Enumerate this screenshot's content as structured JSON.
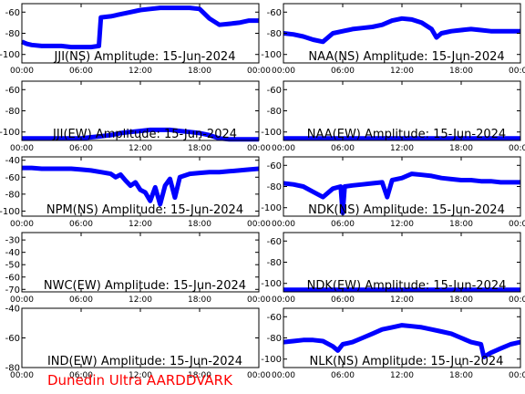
{
  "footer": "Dunedin Ultra AARDDVARK",
  "colors": {
    "trace": "#0000ff",
    "axis": "#000000",
    "footer": "#ff0000"
  },
  "chart_data": [
    {
      "type": "line",
      "title": "JJI(NS) Amplitude: 15-Jun-2024",
      "yticks": [
        -60,
        -80,
        -100
      ],
      "ylim": [
        -108,
        -52
      ],
      "x_ticks": [
        "00:00",
        "06:00",
        "12:00",
        "18:00",
        "00:00"
      ],
      "series": [
        {
          "x": [
            0,
            0.5,
            1,
            2,
            3,
            4,
            5,
            6,
            7,
            7.8,
            8,
            9,
            10,
            11,
            12,
            13,
            14,
            15,
            16,
            17,
            18,
            19,
            20,
            21,
            22,
            23,
            24
          ],
          "y": [
            -88,
            -90,
            -91,
            -92,
            -92,
            -92,
            -93,
            -93,
            -93,
            -92,
            -65,
            -64,
            -62,
            -60,
            -58,
            -57,
            -56,
            -56,
            -56,
            -56,
            -57,
            -66,
            -72,
            -71,
            -70,
            -68,
            -68
          ]
        }
      ]
    },
    {
      "type": "line",
      "title": "NAA(NS) Amplitude: 15-Jun-2024",
      "yticks": [
        -60,
        -80,
        -100
      ],
      "ylim": [
        -108,
        -52
      ],
      "x_ticks": [
        "00:00",
        "06:00",
        "12:00",
        "18:00",
        "00:00"
      ],
      "series": [
        {
          "x": [
            0,
            1,
            2,
            3,
            4,
            5,
            6,
            7,
            8,
            9,
            10,
            11,
            12,
            13,
            14,
            15,
            15.5,
            16,
            17,
            18,
            19,
            20,
            21,
            22,
            23,
            24
          ],
          "y": [
            -80,
            -81,
            -83,
            -86,
            -88,
            -80,
            -78,
            -76,
            -75,
            -74,
            -72,
            -68,
            -66,
            -67,
            -70,
            -76,
            -84,
            -80,
            -78,
            -77,
            -76,
            -77,
            -78,
            -78,
            -78,
            -78
          ]
        }
      ]
    },
    {
      "type": "line",
      "title": "JJI(EW) Amplitude: 15-Jun-2024",
      "yticks": [
        -60,
        -80,
        -100
      ],
      "ylim": [
        -108,
        -52
      ],
      "x_ticks": [
        "00:00",
        "06:00",
        "12:00",
        "18:00",
        "00:00"
      ],
      "series": [
        {
          "x": [
            0,
            2,
            4,
            6,
            7,
            8,
            9,
            10,
            11,
            12,
            13,
            14,
            15,
            16,
            17,
            18,
            19,
            20,
            21,
            22,
            23,
            24
          ],
          "y": [
            -106,
            -106,
            -106,
            -106,
            -105,
            -104,
            -103,
            -101,
            -100,
            -99,
            -98,
            -98,
            -98,
            -99,
            -100,
            -101,
            -103,
            -106,
            -107,
            -107,
            -107,
            -107
          ]
        }
      ]
    },
    {
      "type": "line",
      "title": "NAA(EW) Amplitude: 15-Jun-2024",
      "yticks": [
        -60,
        -80,
        -100
      ],
      "ylim": [
        -108,
        -52
      ],
      "x_ticks": [
        "00:00",
        "06:00",
        "12:00",
        "18:00",
        "00:00"
      ],
      "series": [
        {
          "x": [
            0,
            4,
            8,
            12,
            16,
            20,
            24
          ],
          "y": [
            -106,
            -106,
            -106,
            -106,
            -106,
            -106,
            -106
          ]
        }
      ]
    },
    {
      "type": "line",
      "title": "NPM(NS) Amplitude: 15-Jun-2024",
      "yticks": [
        -40,
        -60,
        -80,
        -100
      ],
      "ylim": [
        -106,
        -36
      ],
      "x_ticks": [
        "00:00",
        "06:00",
        "12:00",
        "18:00",
        "00:00"
      ],
      "series": [
        {
          "x": [
            0,
            1,
            2,
            3,
            4,
            5,
            6,
            7,
            8,
            9,
            9.5,
            10,
            10.5,
            11,
            11.5,
            12,
            12.5,
            13,
            13.5,
            14,
            14.5,
            15,
            15.5,
            16,
            17,
            18,
            19,
            20,
            21,
            22,
            23,
            24
          ],
          "y": [
            -49,
            -49,
            -50,
            -50,
            -50,
            -50,
            -51,
            -52,
            -54,
            -56,
            -60,
            -57,
            -64,
            -70,
            -66,
            -75,
            -78,
            -88,
            -72,
            -92,
            -70,
            -62,
            -84,
            -60,
            -56,
            -55,
            -54,
            -54,
            -53,
            -52,
            -51,
            -50
          ]
        }
      ]
    },
    {
      "type": "line",
      "title": "NDK(NS) Amplitude: 15-Jun-2024",
      "yticks": [
        -60,
        -80,
        -100
      ],
      "ylim": [
        -108,
        -52
      ],
      "x_ticks": [
        "00:00",
        "06:00",
        "12:00",
        "18:00",
        "00:00"
      ],
      "series": [
        {
          "x": [
            0,
            1,
            2,
            3,
            4,
            5,
            5.8,
            6,
            6.2,
            7,
            8,
            9,
            10,
            10.5,
            11,
            12,
            13,
            14,
            15,
            16,
            17,
            18,
            19,
            20,
            21,
            22,
            23,
            24
          ],
          "y": [
            -77,
            -78,
            -80,
            -85,
            -90,
            -82,
            -80,
            -105,
            -80,
            -79,
            -78,
            -77,
            -76,
            -90,
            -74,
            -72,
            -68,
            -69,
            -70,
            -72,
            -73,
            -74,
            -74,
            -75,
            -75,
            -76,
            -76,
            -76
          ]
        }
      ]
    },
    {
      "type": "line",
      "title": "NWC(EW) Amplitude: 15-Jun-2024",
      "yticks": [
        -30,
        -40,
        -50,
        -60,
        -70
      ],
      "ylim": [
        -72,
        -24
      ],
      "x_ticks": [
        "00:00",
        "06:00",
        "12:00",
        "18:00",
        "00:00"
      ],
      "series": []
    },
    {
      "type": "line",
      "title": "NDK(EW) Amplitude: 15-Jun-2024",
      "yticks": [
        -60,
        -80,
        -100
      ],
      "ylim": [
        -108,
        -52
      ],
      "x_ticks": [
        "00:00",
        "06:00",
        "12:00",
        "18:00",
        "00:00"
      ],
      "series": [
        {
          "x": [
            0,
            4,
            8,
            12,
            16,
            20,
            24
          ],
          "y": [
            -106,
            -106,
            -106,
            -106,
            -106,
            -106,
            -106
          ]
        }
      ]
    },
    {
      "type": "line",
      "title": "IND(EW) Amplitude: 15-Jun-2024",
      "yticks": [
        -40,
        -60,
        -80
      ],
      "ylim": [
        -80,
        -40
      ],
      "x_ticks": [
        "00:00",
        "06:00",
        "12:00",
        "18:00",
        "00:00"
      ],
      "series": []
    },
    {
      "type": "line",
      "title": "NLK(NS) Amplitude: 15-Jun-2024",
      "yticks": [
        -60,
        -80,
        -100
      ],
      "ylim": [
        -108,
        -52
      ],
      "x_ticks": [
        "00:00",
        "06:00",
        "12:00",
        "18:00",
        "00:00"
      ],
      "series": [
        {
          "x": [
            0,
            1,
            2,
            3,
            4,
            5,
            5.5,
            6,
            7,
            8,
            9,
            10,
            11,
            12,
            13,
            14,
            15,
            16,
            17,
            18,
            19,
            20,
            20.3,
            21,
            22,
            23,
            24
          ],
          "y": [
            -84,
            -83,
            -82,
            -82,
            -83,
            -88,
            -92,
            -86,
            -84,
            -80,
            -76,
            -72,
            -70,
            -68,
            -69,
            -70,
            -72,
            -74,
            -76,
            -80,
            -84,
            -86,
            -98,
            -94,
            -90,
            -86,
            -84
          ]
        }
      ]
    }
  ]
}
